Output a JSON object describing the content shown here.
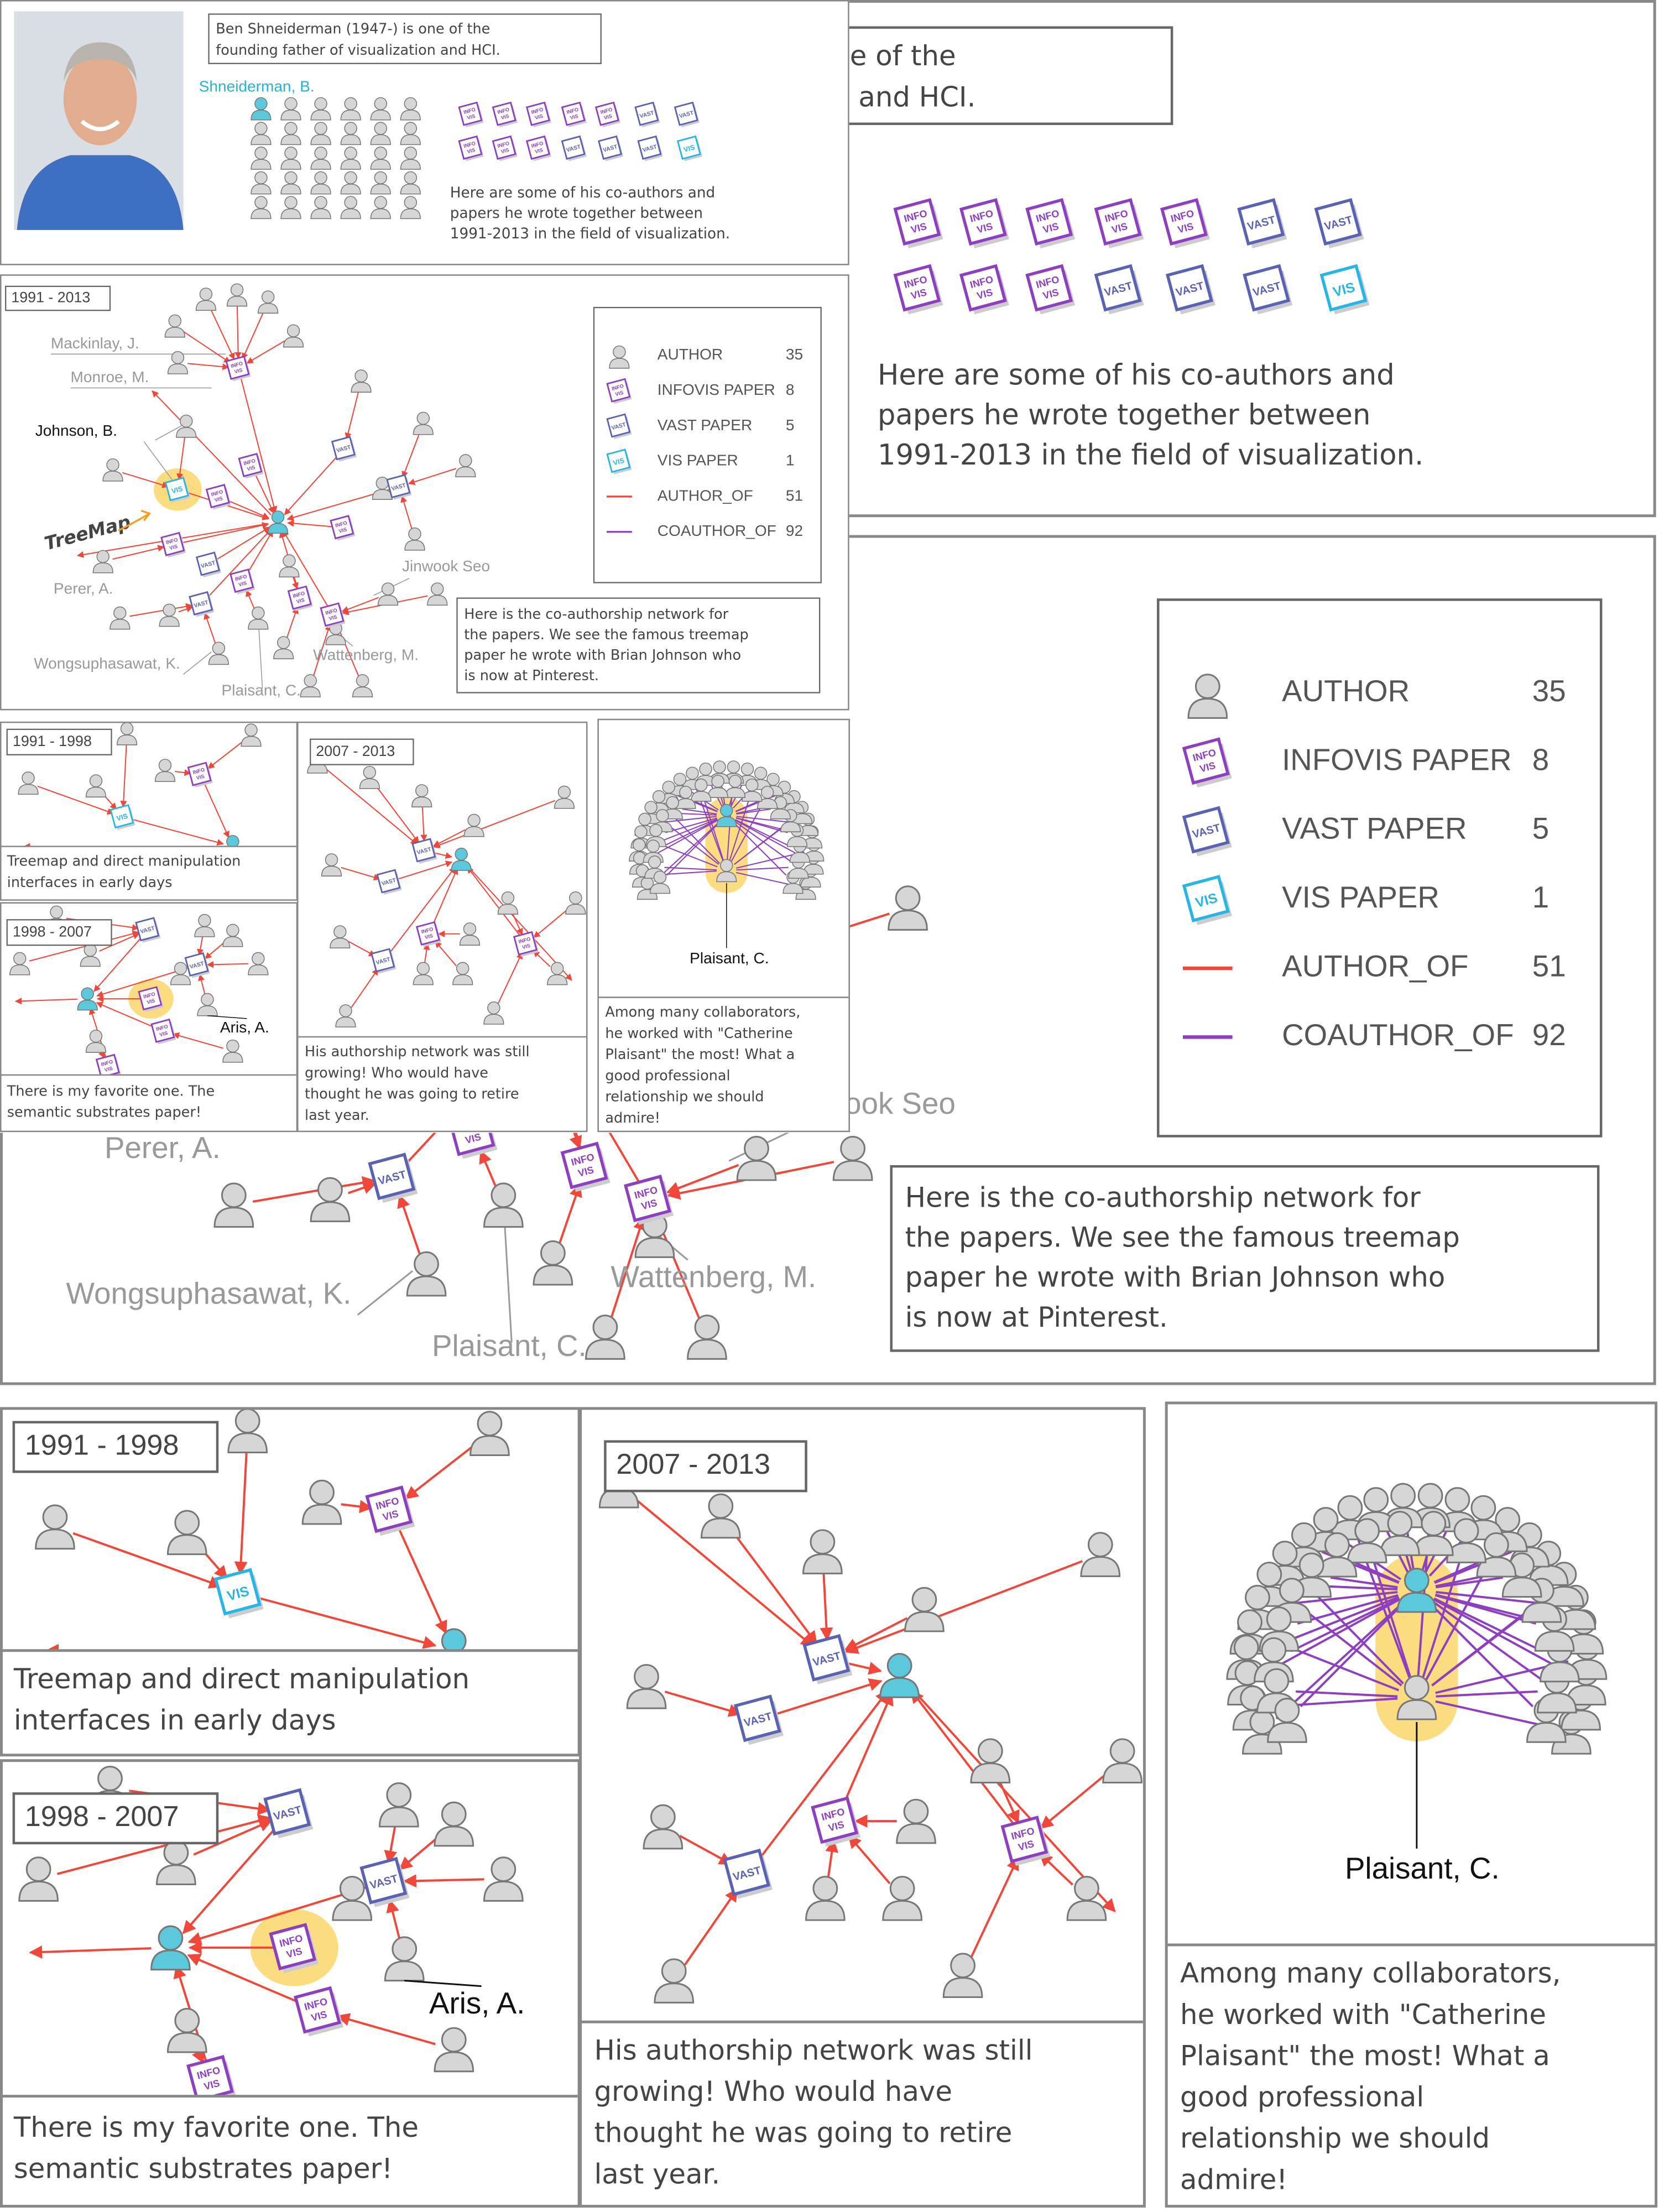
{
  "intro": {
    "bio": [
      "Ben Shneiderman (1947-) is one of the",
      "founding father of visualization and HCI."
    ],
    "author_label": "Shneiderman, B.",
    "caption": [
      "Here are some of his co-authors and",
      "papers he wrote together between",
      "1991-2013 in the field of visualization."
    ]
  },
  "icon_text": {
    "infovis": [
      "INFO",
      "VIS"
    ],
    "vast": "VAST",
    "vis": "VIS"
  },
  "overview": {
    "period": "1991 - 2013",
    "labels": [
      "Mackinlay, J.",
      "Monroe, M.",
      "Johnson, B.",
      "Perer, A.",
      "Jinwook Seo",
      "Wongsuphasawat, K.",
      "Plaisant, C.",
      "Wattenberg, M."
    ],
    "annotation": "TreeMap",
    "caption": [
      "Here is the co-authorship network for",
      "the papers. We see the famous treemap",
      "paper he wrote with Brian Johnson who",
      "is now at Pinterest."
    ]
  },
  "legend": [
    {
      "label": "AUTHOR",
      "count": 35
    },
    {
      "label": "INFOVIS PAPER",
      "count": 8
    },
    {
      "label": "VAST PAPER",
      "count": 5
    },
    {
      "label": "VIS PAPER",
      "count": 1
    },
    {
      "label": "AUTHOR_OF",
      "count": 51
    },
    {
      "label": "COAUTHOR_OF",
      "count": 92
    }
  ],
  "panels": [
    {
      "period": "1991 - 1998",
      "caption": [
        "Treemap and direct manipulation",
        "interfaces in early days"
      ]
    },
    {
      "period": "1998 - 2007",
      "label": "Aris, A.",
      "caption": [
        "There is my favorite one. The",
        "semantic substrates paper!"
      ]
    },
    {
      "period": "2007 - 2013",
      "caption": [
        "His authorship network was still",
        "growing! Who would have",
        "thought he was going to retire",
        "last year."
      ]
    },
    {
      "label": "Plaisant, C.",
      "caption": [
        "Among many collaborators,",
        "he worked with \"Catherine",
        "Plaisant\" the most! What a",
        "good professional",
        "relationship we should",
        "admire!"
      ]
    }
  ]
}
